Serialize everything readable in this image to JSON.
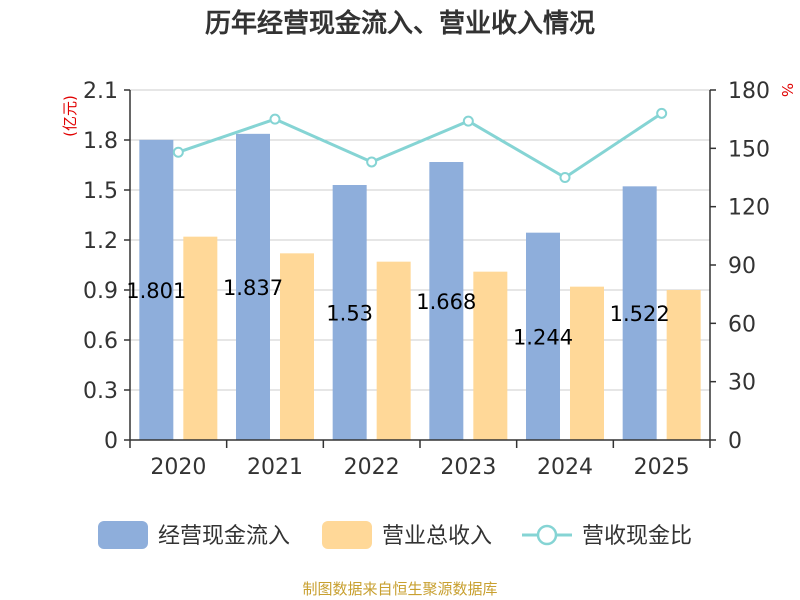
{
  "chart_data": {
    "type": "bar",
    "title": "历年经营现金流入、营业收入情况",
    "categories": [
      "2020",
      "2021",
      "2022",
      "2023",
      "2024",
      "2025"
    ],
    "series": [
      {
        "name": "经营现金流入",
        "type": "bar",
        "axis": "left",
        "values": [
          1.801,
          1.837,
          1.53,
          1.668,
          1.244,
          1.522
        ],
        "labels": [
          "1.801",
          "1.837",
          "1.53",
          "1.668",
          "1.244",
          "1.522"
        ],
        "color": "#8eaedb"
      },
      {
        "name": "营业总收入",
        "type": "bar",
        "axis": "left",
        "values": [
          1.22,
          1.12,
          1.07,
          1.01,
          0.92,
          0.9
        ],
        "color": "#ffd898"
      },
      {
        "name": "营收现金比",
        "type": "line",
        "axis": "right",
        "values": [
          148,
          165,
          143,
          164,
          135,
          168
        ],
        "color": "#85d4d4"
      }
    ],
    "y_left": {
      "unit_label": "(亿元)",
      "ylim": [
        0,
        2.1
      ],
      "ticks": [
        "0",
        "0.3",
        "0.6",
        "0.9",
        "1.2",
        "1.5",
        "1.8",
        "2.1"
      ]
    },
    "y_right": {
      "unit_label": "%",
      "ylim": [
        0,
        180
      ],
      "ticks": [
        "0",
        "30",
        "60",
        "90",
        "120",
        "150",
        "180"
      ]
    },
    "grid": true,
    "legend_position": "bottom"
  },
  "source_note": "制图数据来自恒生聚源数据库"
}
